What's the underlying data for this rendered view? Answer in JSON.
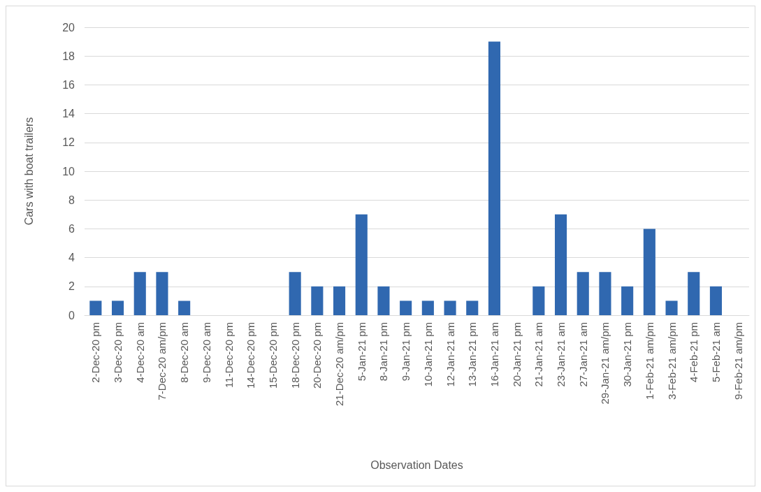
{
  "chart_data": {
    "type": "bar",
    "xlabel": "Observation Dates",
    "ylabel": "Cars with boat trailers",
    "categories": [
      "2-Dec-20 pm",
      "3-Dec-20 pm",
      "4-Dec-20 am",
      "7-Dec-20 am/pm",
      "8-Dec-20 am",
      "9-Dec-20 am",
      "11-Dec-20 pm",
      "14-Dec-20 pm",
      "15-Dec-20 pm",
      "18-Dec-20 pm",
      "20-Dec-20 pm",
      "21-Dec-20 am/pm",
      "5-Jan-21 pm",
      "8-Jan-21 pm",
      "9-Jan-21 pm",
      "10-Jan-21 pm",
      "12-Jan-21 am",
      "13-Jan-21 pm",
      "16-Jan-21 am",
      "20-Jan-21 pm",
      "21-Jan-21 am",
      "23-Jan-21 am",
      "27-Jan-21 am",
      "29-Jan-21 am/pm",
      "30-Jan-21 pm",
      "1-Feb-21 am/pm",
      "3-Feb-21 am/pm",
      "4-Feb-21 pm",
      "5-Feb-21 am",
      "9-Feb-21 am/pm"
    ],
    "values": [
      1,
      1,
      3,
      3,
      1,
      0,
      0,
      0,
      0,
      3,
      2,
      2,
      7,
      2,
      1,
      1,
      1,
      1,
      19,
      0,
      2,
      7,
      3,
      3,
      2,
      6,
      1,
      3,
      2,
      0
    ],
    "color": "#3068b0",
    "ylim": [
      0,
      20
    ],
    "yticks": [
      0,
      2,
      4,
      6,
      8,
      10,
      12,
      14,
      16,
      18,
      20
    ],
    "grid": "y"
  }
}
